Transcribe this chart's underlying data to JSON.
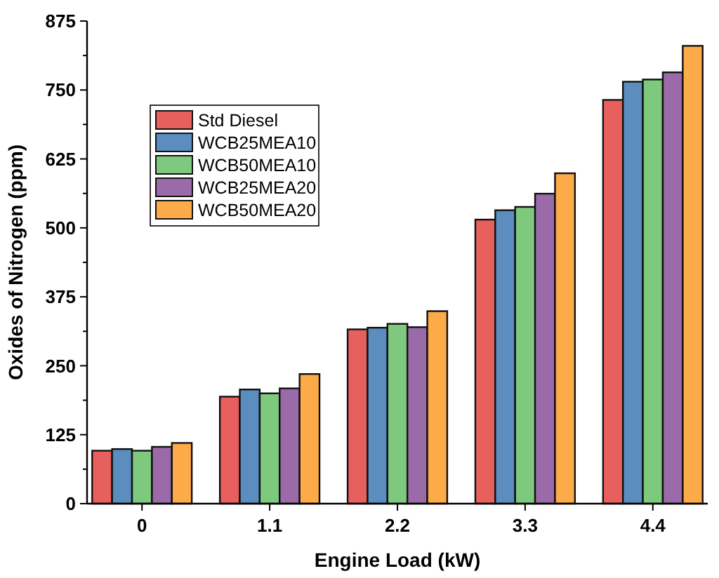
{
  "chart_data": {
    "type": "bar",
    "xlabel": "Engine Load (kW)",
    "ylabel": "Oxides of Nitrogen (ppm)",
    "categories": [
      "0",
      "1.1",
      "2.2",
      "3.3",
      "4.4"
    ],
    "series": [
      {
        "name": "Std Diesel",
        "color": "#e8605e",
        "values": [
          96,
          194,
          316,
          515,
          732
        ]
      },
      {
        "name": "WCB25MEA10",
        "color": "#5b8dbf",
        "values": [
          99,
          207,
          319,
          532,
          765
        ]
      },
      {
        "name": "WCB50MEA10",
        "color": "#7fc97f",
        "values": [
          96,
          200,
          326,
          538,
          769
        ]
      },
      {
        "name": "WCB25MEA20",
        "color": "#9b6aa8",
        "values": [
          103,
          209,
          320,
          562,
          782
        ]
      },
      {
        "name": "WCB50MEA20",
        "color": "#fdaa48",
        "values": [
          110,
          235,
          349,
          599,
          830
        ]
      }
    ],
    "ylim": [
      0,
      875
    ],
    "yticks": [
      0,
      125,
      250,
      375,
      500,
      625,
      750,
      875
    ],
    "legend": "top left"
  }
}
